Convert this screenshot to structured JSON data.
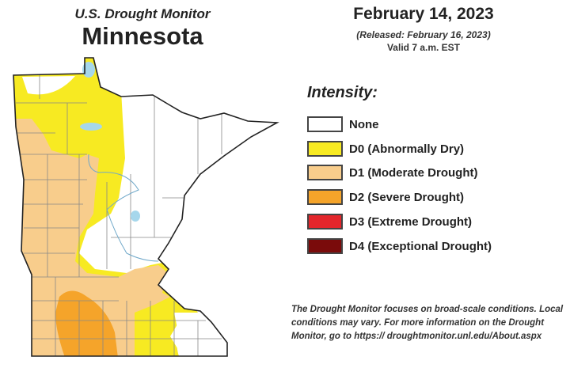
{
  "header": {
    "subtitle": "U.S. Drought Monitor",
    "title": "Minnesota",
    "date": "February 14, 2023",
    "released": "(Released: February 16, 2023)",
    "valid": "Valid 7 a.m. EST"
  },
  "legend": {
    "title": "Intensity:",
    "items": [
      {
        "label": "None",
        "color": "#ffffff"
      },
      {
        "label": "D0 (Abnormally Dry)",
        "color": "#f7ea22"
      },
      {
        "label": "D1 (Moderate Drought)",
        "color": "#f8cd8c"
      },
      {
        "label": "D2 (Severe Drought)",
        "color": "#f5a42a"
      },
      {
        "label": "D3 (Extreme Drought)",
        "color": "#e3262b"
      },
      {
        "label": "D4 (Exceptional Drought)",
        "color": "#7a0b0b"
      }
    ]
  },
  "map": {
    "region": "Minnesota",
    "water_color": "#a6d7ec",
    "border_color": "#222222",
    "county_line_color": "#888888"
  },
  "note": "The Drought Monitor focuses on broad-scale conditions. Local conditions may vary. For more information on the Drought Monitor, go to https:// droughtmonitor.unl.edu/About.aspx"
}
